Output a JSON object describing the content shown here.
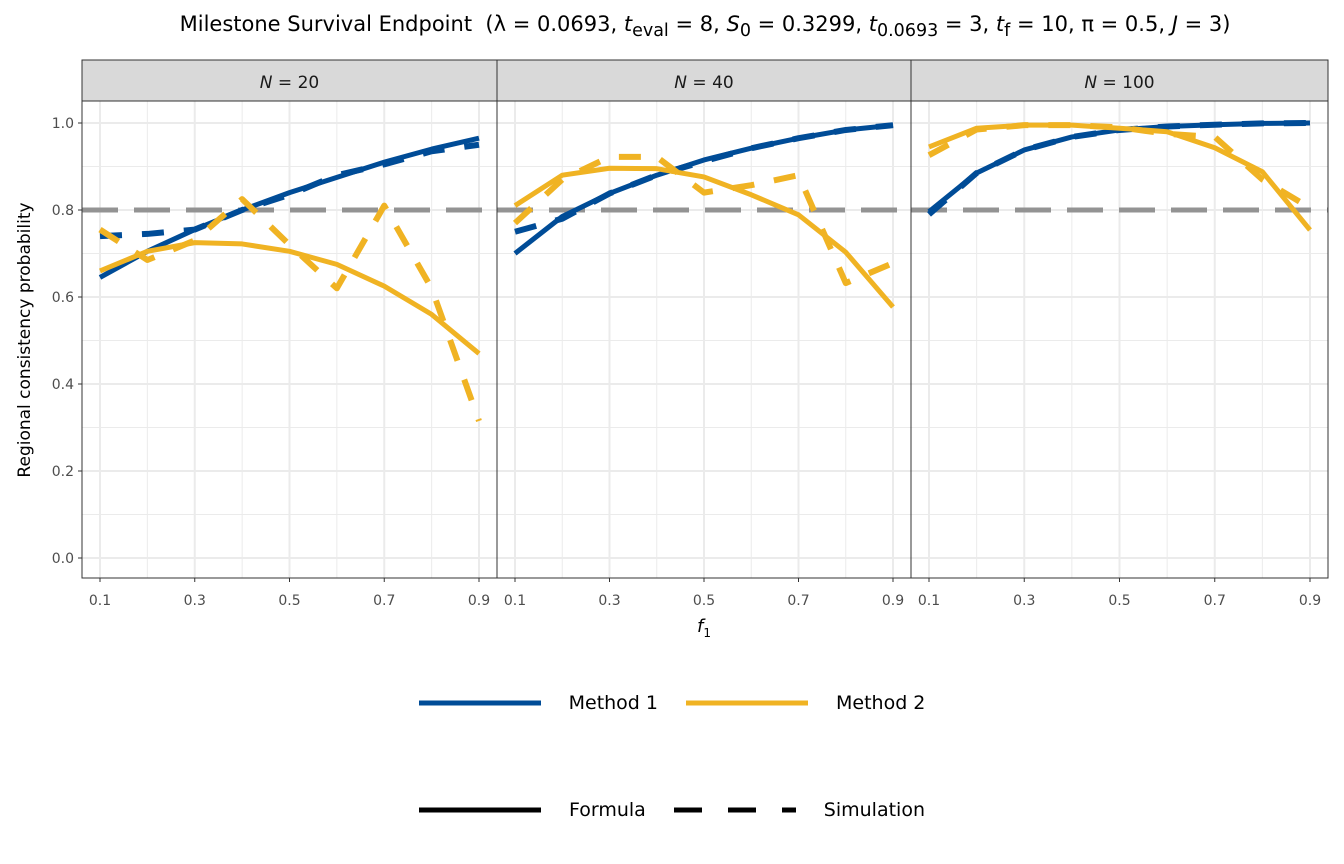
{
  "chart_data": {
    "type": "line",
    "title": "Milestone Survival Endpoint",
    "title_params": "(λ = 0.0693, t_eval = 8, S_0 = 0.3299, t_0.0693 = 3, t_f = 10, π = 0.5, J = 3)",
    "title_parts": {
      "lambda": "λ = 0.0693,",
      "t": "t",
      "eval": "eval",
      "eval_val": " = 8,",
      "S": "S",
      "s0": "0",
      "s0_val": " = 0.3299,",
      "t2": "t",
      "t2sub": "0.0693",
      "t2val": " = 3,",
      "t3": "t",
      "f": "f",
      "tf_val": " = 10,",
      "pi": "π = 0.5,",
      "J": "J",
      "J_val": " = 3)"
    },
    "xlabel": "f",
    "xlabel_sub": "1",
    "ylabel": "Regional consistency probability",
    "x": [
      0.1,
      0.2,
      0.3,
      0.4,
      0.5,
      0.6,
      0.7,
      0.8,
      0.9
    ],
    "xticks": [
      "0.1",
      "0.3",
      "0.5",
      "0.7",
      "0.9"
    ],
    "yticks": [
      "0.0",
      "0.2",
      "0.4",
      "0.6",
      "0.8",
      "1.0"
    ],
    "ylim": [
      -0.05,
      1.05
    ],
    "reference_line": 0.8,
    "grid": true,
    "legend_position": "bottom",
    "colors": {
      "Method 1": "#004C97",
      "Method 2": "#F0B323",
      "reference": "#939393"
    },
    "panels": [
      {
        "label": "N = 20",
        "var": "N",
        "val": "20",
        "series": [
          {
            "method": "Method 1",
            "type": "Formula",
            "values": [
              0.645,
              0.705,
              0.755,
              0.8,
              0.84,
              0.875,
              0.91,
              0.94,
              0.965
            ]
          },
          {
            "method": "Method 1",
            "type": "Simulation",
            "values": [
              0.74,
              0.745,
              0.755,
              0.8,
              0.835,
              0.88,
              0.905,
              0.935,
              0.95
            ]
          },
          {
            "method": "Method 2",
            "type": "Formula",
            "values": [
              0.66,
              0.705,
              0.725,
              0.722,
              0.705,
              0.675,
              0.625,
              0.56,
              0.47
            ]
          },
          {
            "method": "Method 2",
            "type": "Simulation",
            "values": [
              0.755,
              0.685,
              0.73,
              0.825,
              0.72,
              0.62,
              0.81,
              0.62,
              0.315
            ]
          }
        ]
      },
      {
        "label": "N = 40",
        "var": "N",
        "val": "40",
        "series": [
          {
            "method": "Method 1",
            "type": "Formula",
            "values": [
              0.7,
              0.785,
              0.838,
              0.88,
              0.915,
              0.942,
              0.965,
              0.984,
              0.995
            ]
          },
          {
            "method": "Method 1",
            "type": "Simulation",
            "values": [
              0.75,
              0.78,
              0.838,
              0.88,
              0.912,
              0.942,
              0.965,
              0.984,
              0.995
            ]
          },
          {
            "method": "Method 2",
            "type": "Formula",
            "values": [
              0.81,
              0.88,
              0.896,
              0.895,
              0.876,
              0.835,
              0.789,
              0.703,
              0.577
            ]
          },
          {
            "method": "Method 2",
            "type": "Simulation",
            "values": [
              0.77,
              0.87,
              0.922,
              0.922,
              0.84,
              0.857,
              0.88,
              0.632,
              0.678
            ]
          }
        ]
      },
      {
        "label": "N = 100",
        "var": "N",
        "val": "100",
        "series": [
          {
            "method": "Method 1",
            "type": "Formula",
            "values": [
              0.796,
              0.885,
              0.938,
              0.968,
              0.984,
              0.992,
              0.996,
              0.999,
              1.0
            ]
          },
          {
            "method": "Method 1",
            "type": "Simulation",
            "values": [
              0.79,
              0.885,
              0.938,
              0.968,
              0.984,
              0.992,
              0.996,
              0.999,
              1.0
            ]
          },
          {
            "method": "Method 2",
            "type": "Formula",
            "values": [
              0.945,
              0.988,
              0.995,
              0.995,
              0.988,
              0.98,
              0.943,
              0.888,
              0.754
            ]
          },
          {
            "method": "Method 2",
            "type": "Simulation",
            "values": [
              0.926,
              0.985,
              0.995,
              0.995,
              0.99,
              0.975,
              0.968,
              0.87,
              0.805
            ]
          }
        ]
      }
    ],
    "legend": {
      "color": [
        "Method 1",
        "Method 2"
      ],
      "linetype": [
        "Formula",
        "Simulation"
      ]
    }
  }
}
